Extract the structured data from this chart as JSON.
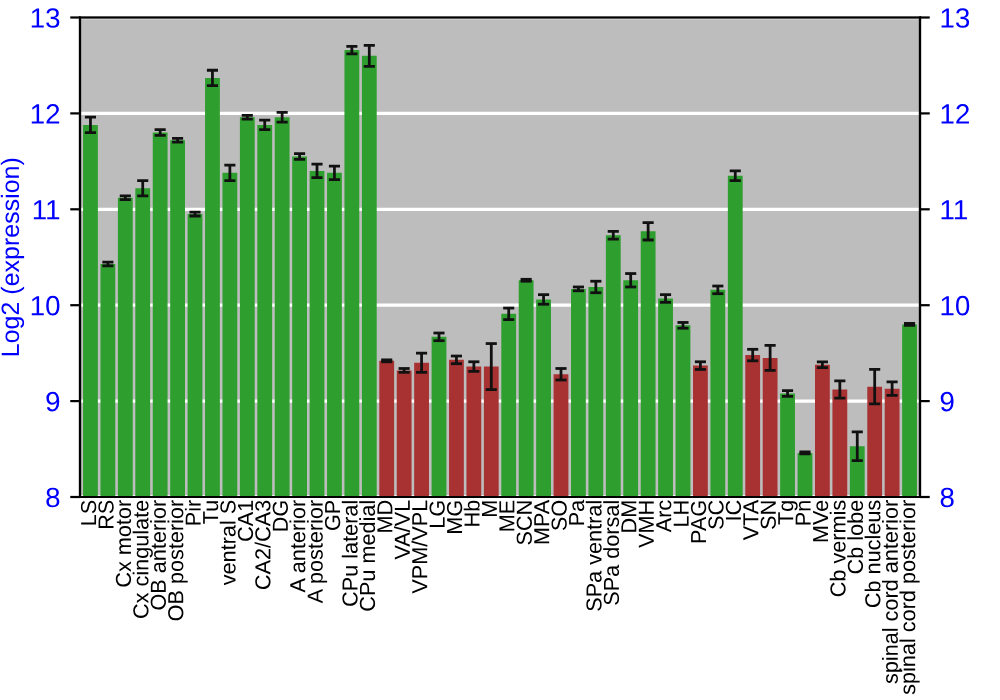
{
  "chart_data": {
    "type": "bar",
    "ylabel": "Log2 (expression)",
    "categories": [
      "LS",
      "RS",
      "Cx motor",
      "Cx cingulate",
      "OB anterior",
      "OB posterior",
      "Pir",
      "Tu",
      "ventral S",
      "CA1",
      "CA2/CA3",
      "DG",
      "A anterior",
      "A posterior",
      "GP",
      "CPu lateral",
      "CPu medial",
      "MD",
      "VA/VL",
      "VPM/VPL",
      "LG",
      "MG",
      "Hb",
      "M",
      "ME",
      "SCN",
      "MPA",
      "SO",
      "Pa",
      "SPa ventral",
      "SPa dorsal",
      "DM",
      "VMH",
      "Arc",
      "LH",
      "PAG",
      "SC",
      "IC",
      "VTA",
      "SN",
      "Tg",
      "Pn",
      "MVe",
      "Cb vermis",
      "Cb lobe",
      "Cb nucleus",
      "spinal cord anterior",
      "spinal cord posterior"
    ],
    "values": [
      11.88,
      10.43,
      11.12,
      11.22,
      11.8,
      11.72,
      10.95,
      12.37,
      11.38,
      11.96,
      11.88,
      11.96,
      11.55,
      11.4,
      11.38,
      12.66,
      12.6,
      9.42,
      9.32,
      9.4,
      9.67,
      9.43,
      9.36,
      9.36,
      9.91,
      10.26,
      10.06,
      9.28,
      10.17,
      10.19,
      10.73,
      10.26,
      10.77,
      10.07,
      9.79,
      9.37,
      10.16,
      11.35,
      9.48,
      9.45,
      9.08,
      8.46,
      9.38,
      9.12,
      8.53,
      9.15,
      9.13,
      9.8
    ],
    "errors": [
      0.08,
      0.02,
      0.02,
      0.08,
      0.03,
      0.02,
      0.02,
      0.08,
      0.08,
      0.02,
      0.05,
      0.05,
      0.03,
      0.07,
      0.07,
      0.04,
      0.11,
      0.01,
      0.02,
      0.1,
      0.04,
      0.04,
      0.05,
      0.24,
      0.06,
      0.01,
      0.05,
      0.06,
      0.02,
      0.06,
      0.04,
      0.07,
      0.09,
      0.04,
      0.03,
      0.04,
      0.04,
      0.05,
      0.06,
      0.13,
      0.03,
      0.01,
      0.03,
      0.09,
      0.15,
      0.18,
      0.07,
      0.01
    ],
    "colors": [
      "#2e9e2e",
      "#2e9e2e",
      "#2e9e2e",
      "#2e9e2e",
      "#2e9e2e",
      "#2e9e2e",
      "#2e9e2e",
      "#2e9e2e",
      "#2e9e2e",
      "#2e9e2e",
      "#2e9e2e",
      "#2e9e2e",
      "#2e9e2e",
      "#2e9e2e",
      "#2e9e2e",
      "#2e9e2e",
      "#2e9e2e",
      "#a83232",
      "#a83232",
      "#a83232",
      "#2e9e2e",
      "#a83232",
      "#a83232",
      "#a83232",
      "#2e9e2e",
      "#2e9e2e",
      "#2e9e2e",
      "#a83232",
      "#2e9e2e",
      "#2e9e2e",
      "#2e9e2e",
      "#2e9e2e",
      "#2e9e2e",
      "#2e9e2e",
      "#2e9e2e",
      "#a83232",
      "#2e9e2e",
      "#2e9e2e",
      "#a83232",
      "#a83232",
      "#2e9e2e",
      "#2e9e2e",
      "#a83232",
      "#a83232",
      "#2e9e2e",
      "#a83232",
      "#a83232",
      "#2e9e2e"
    ],
    "ylim": [
      8,
      13
    ],
    "yticks": [
      8,
      9,
      10,
      11,
      12,
      13
    ],
    "y2lim": [
      8,
      13
    ],
    "y2ticks": [
      8,
      9,
      10,
      11,
      12,
      13
    ],
    "grid": "y"
  }
}
